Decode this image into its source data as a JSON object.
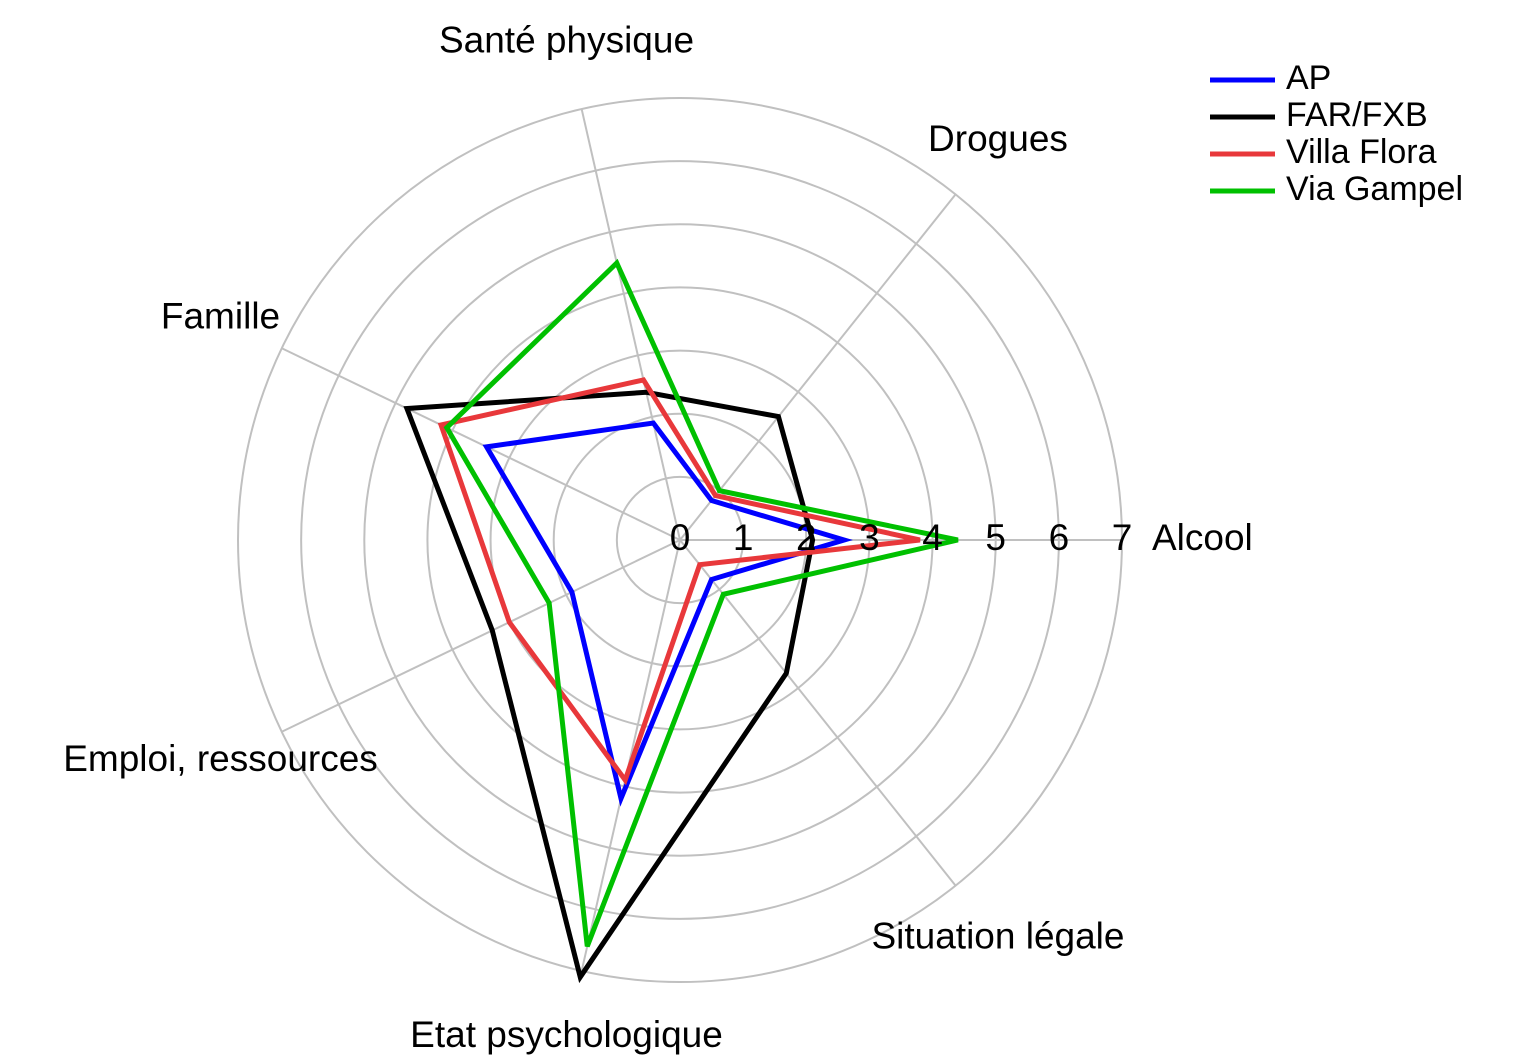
{
  "chart_data": {
    "type": "radar",
    "categories": [
      "Alcool",
      "Drogues",
      "Santé physique",
      "Famille",
      "Emploi, ressources",
      "Etat psychologique",
      "Situation légale"
    ],
    "ylim": [
      0,
      7
    ],
    "yticks": [
      0,
      1,
      2,
      3,
      4,
      5,
      6,
      7
    ],
    "grid": true,
    "legend": "top-right",
    "series": [
      {
        "name": "AP",
        "color": "#0000ff",
        "values": [
          2.6,
          0.8,
          1.9,
          3.4,
          1.9,
          4.2,
          0.8
        ]
      },
      {
        "name": "FAR/FXB",
        "color": "#000000",
        "values": [
          2.1,
          2.5,
          2.4,
          4.8,
          3.3,
          7.1,
          2.7
        ]
      },
      {
        "name": "Villa Flora",
        "color": "#e8383b",
        "values": [
          3.8,
          0.9,
          2.6,
          4.2,
          3.0,
          3.9,
          0.5
        ]
      },
      {
        "name": "Via Gampel",
        "color": "#00c000",
        "values": [
          4.4,
          1.0,
          4.5,
          4.1,
          2.3,
          6.6,
          1.1
        ]
      }
    ]
  }
}
